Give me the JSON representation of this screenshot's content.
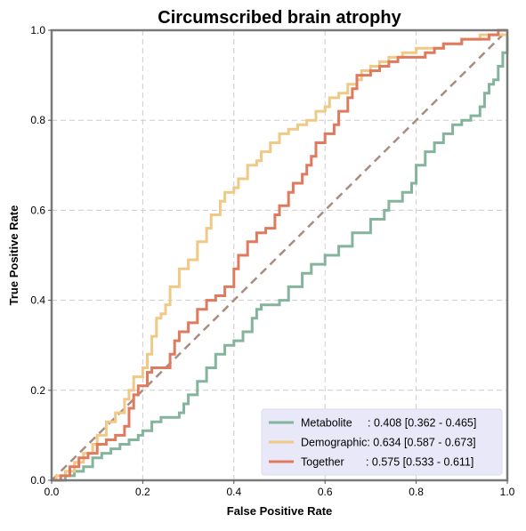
{
  "chart_data": {
    "type": "line",
    "title": "Circumscribed brain atrophy",
    "xlabel": "False Positive Rate",
    "ylabel": "True Positive Rate",
    "xlim": [
      0,
      1
    ],
    "ylim": [
      0,
      1
    ],
    "xticks": [
      "0.0",
      "0.2",
      "0.4",
      "0.6",
      "0.8",
      "1.0"
    ],
    "yticks": [
      "0.0",
      "0.2",
      "0.4",
      "0.6",
      "0.8",
      "1.0"
    ],
    "grid": true,
    "legend_position": "lower-right",
    "legend_background": "#e8e8f8",
    "series": [
      {
        "name": "Metabolite",
        "legend_label": "Metabolite     : 0.408 [0.362 - 0.465]",
        "color": "#84b59c",
        "points": [
          [
            0,
            0
          ],
          [
            0.02,
            0
          ],
          [
            0.03,
            0.01
          ],
          [
            0.05,
            0.02
          ],
          [
            0.07,
            0.03
          ],
          [
            0.09,
            0.05
          ],
          [
            0.11,
            0.06
          ],
          [
            0.13,
            0.07
          ],
          [
            0.15,
            0.08
          ],
          [
            0.17,
            0.09
          ],
          [
            0.19,
            0.1
          ],
          [
            0.2,
            0.11
          ],
          [
            0.22,
            0.13
          ],
          [
            0.24,
            0.14
          ],
          [
            0.26,
            0.14
          ],
          [
            0.28,
            0.15
          ],
          [
            0.29,
            0.17
          ],
          [
            0.3,
            0.19
          ],
          [
            0.32,
            0.22
          ],
          [
            0.34,
            0.25
          ],
          [
            0.36,
            0.28
          ],
          [
            0.38,
            0.3
          ],
          [
            0.4,
            0.31
          ],
          [
            0.42,
            0.33
          ],
          [
            0.44,
            0.36
          ],
          [
            0.45,
            0.38
          ],
          [
            0.46,
            0.39
          ],
          [
            0.48,
            0.39
          ],
          [
            0.5,
            0.4
          ],
          [
            0.52,
            0.43
          ],
          [
            0.55,
            0.46
          ],
          [
            0.57,
            0.48
          ],
          [
            0.6,
            0.5
          ],
          [
            0.63,
            0.52
          ],
          [
            0.66,
            0.55
          ],
          [
            0.7,
            0.58
          ],
          [
            0.73,
            0.6
          ],
          [
            0.74,
            0.62
          ],
          [
            0.77,
            0.64
          ],
          [
            0.79,
            0.66
          ],
          [
            0.8,
            0.7
          ],
          [
            0.82,
            0.73
          ],
          [
            0.84,
            0.75
          ],
          [
            0.86,
            0.77
          ],
          [
            0.88,
            0.79
          ],
          [
            0.9,
            0.8
          ],
          [
            0.92,
            0.81
          ],
          [
            0.94,
            0.83
          ],
          [
            0.95,
            0.86
          ],
          [
            0.96,
            0.88
          ],
          [
            0.97,
            0.89
          ],
          [
            0.98,
            0.92
          ],
          [
            0.99,
            0.95
          ],
          [
            1,
            0.98
          ],
          [
            1,
            1
          ]
        ]
      },
      {
        "name": "Demographic",
        "legend_label": "Demographic: 0.634 [0.587 - 0.673]",
        "color": "#f0c986",
        "points": [
          [
            0,
            0
          ],
          [
            0.01,
            0.01
          ],
          [
            0.03,
            0.02
          ],
          [
            0.05,
            0.04
          ],
          [
            0.07,
            0.06
          ],
          [
            0.09,
            0.08
          ],
          [
            0.1,
            0.1
          ],
          [
            0.12,
            0.13
          ],
          [
            0.14,
            0.15
          ],
          [
            0.16,
            0.18
          ],
          [
            0.17,
            0.2
          ],
          [
            0.18,
            0.23
          ],
          [
            0.2,
            0.25
          ],
          [
            0.21,
            0.28
          ],
          [
            0.22,
            0.32
          ],
          [
            0.23,
            0.36
          ],
          [
            0.24,
            0.37
          ],
          [
            0.25,
            0.39
          ],
          [
            0.26,
            0.43
          ],
          [
            0.28,
            0.47
          ],
          [
            0.3,
            0.49
          ],
          [
            0.32,
            0.53
          ],
          [
            0.34,
            0.56
          ],
          [
            0.35,
            0.59
          ],
          [
            0.37,
            0.62
          ],
          [
            0.38,
            0.64
          ],
          [
            0.4,
            0.65
          ],
          [
            0.41,
            0.67
          ],
          [
            0.43,
            0.7
          ],
          [
            0.45,
            0.71
          ],
          [
            0.46,
            0.73
          ],
          [
            0.48,
            0.75
          ],
          [
            0.5,
            0.77
          ],
          [
            0.52,
            0.78
          ],
          [
            0.54,
            0.79
          ],
          [
            0.56,
            0.8
          ],
          [
            0.58,
            0.82
          ],
          [
            0.6,
            0.83
          ],
          [
            0.61,
            0.85
          ],
          [
            0.63,
            0.86
          ],
          [
            0.65,
            0.88
          ],
          [
            0.67,
            0.89
          ],
          [
            0.68,
            0.91
          ],
          [
            0.7,
            0.92
          ],
          [
            0.72,
            0.93
          ],
          [
            0.74,
            0.94
          ],
          [
            0.77,
            0.95
          ],
          [
            0.8,
            0.96
          ],
          [
            0.83,
            0.96
          ],
          [
            0.86,
            0.97
          ],
          [
            0.9,
            0.98
          ],
          [
            0.94,
            0.99
          ],
          [
            0.97,
            0.99
          ],
          [
            1,
            1
          ]
        ]
      },
      {
        "name": "Together",
        "legend_label": "Together       : 0.575 [0.533 - 0.611]",
        "color": "#e07a5f",
        "points": [
          [
            0,
            0
          ],
          [
            0.02,
            0.01
          ],
          [
            0.04,
            0.03
          ],
          [
            0.06,
            0.05
          ],
          [
            0.08,
            0.06
          ],
          [
            0.1,
            0.08
          ],
          [
            0.12,
            0.09
          ],
          [
            0.14,
            0.1
          ],
          [
            0.16,
            0.12
          ],
          [
            0.17,
            0.16
          ],
          [
            0.18,
            0.19
          ],
          [
            0.19,
            0.21
          ],
          [
            0.21,
            0.24
          ],
          [
            0.22,
            0.25
          ],
          [
            0.25,
            0.25
          ],
          [
            0.26,
            0.28
          ],
          [
            0.27,
            0.31
          ],
          [
            0.28,
            0.33
          ],
          [
            0.3,
            0.35
          ],
          [
            0.32,
            0.38
          ],
          [
            0.34,
            0.4
          ],
          [
            0.36,
            0.41
          ],
          [
            0.38,
            0.43
          ],
          [
            0.4,
            0.47
          ],
          [
            0.41,
            0.5
          ],
          [
            0.43,
            0.53
          ],
          [
            0.45,
            0.55
          ],
          [
            0.47,
            0.56
          ],
          [
            0.49,
            0.59
          ],
          [
            0.5,
            0.61
          ],
          [
            0.52,
            0.64
          ],
          [
            0.53,
            0.66
          ],
          [
            0.55,
            0.68
          ],
          [
            0.56,
            0.7
          ],
          [
            0.57,
            0.72
          ],
          [
            0.58,
            0.75
          ],
          [
            0.6,
            0.77
          ],
          [
            0.62,
            0.79
          ],
          [
            0.63,
            0.82
          ],
          [
            0.65,
            0.85
          ],
          [
            0.66,
            0.87
          ],
          [
            0.67,
            0.9
          ],
          [
            0.7,
            0.91
          ],
          [
            0.72,
            0.92
          ],
          [
            0.74,
            0.93
          ],
          [
            0.76,
            0.94
          ],
          [
            0.8,
            0.94
          ],
          [
            0.82,
            0.95
          ],
          [
            0.84,
            0.96
          ],
          [
            0.86,
            0.97
          ],
          [
            0.88,
            0.97
          ],
          [
            0.9,
            0.98
          ],
          [
            0.94,
            0.98
          ],
          [
            0.96,
            0.99
          ],
          [
            0.98,
            1
          ],
          [
            1,
            1
          ]
        ]
      }
    ],
    "diagonal": {
      "points": [
        [
          0,
          0
        ],
        [
          1,
          1
        ]
      ],
      "color": "#a98b80",
      "style": "dashed"
    }
  }
}
